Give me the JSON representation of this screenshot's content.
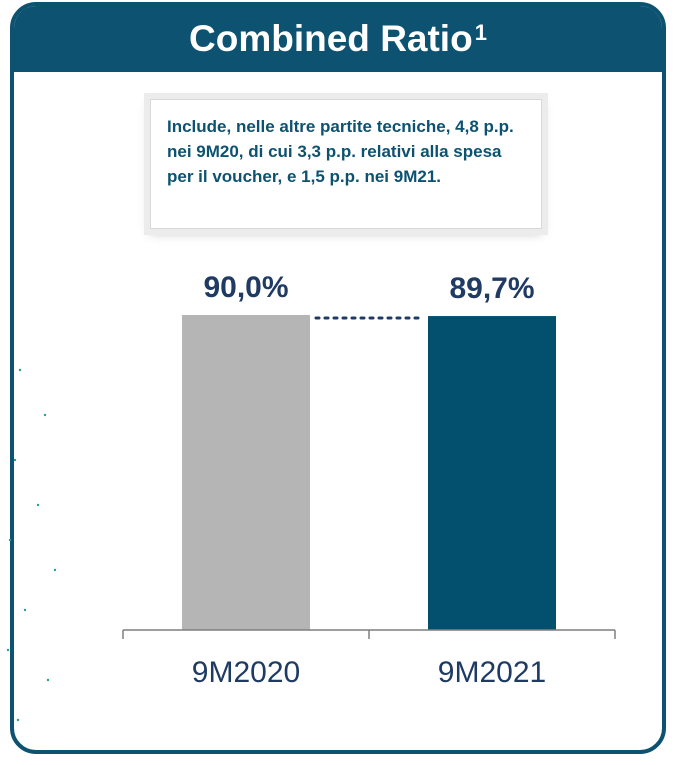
{
  "header": {
    "title": "Combined Ratio",
    "footnote_marker": "1"
  },
  "note": {
    "text": "Include, nelle altre partite tecniche, 4,8 p.p. nei 9M20, di cui 3,3 p.p. relativi alla spesa per il voucher, e 1,5 p.p. nei 9M21."
  },
  "colors": {
    "primary": "#0d5270",
    "bar_2020": "#b5b5b5",
    "bar_2021": "#034f6e",
    "text_dark": "#1f3b63"
  },
  "chart_data": {
    "type": "bar",
    "categories": [
      "9M2020",
      "9M2021"
    ],
    "values": [
      90.0,
      89.7
    ],
    "data_labels": [
      "90,0%",
      "89,7%"
    ],
    "title": "Combined Ratio",
    "xlabel": "",
    "ylabel": "",
    "ylim": [
      0,
      90.0
    ],
    "grid": false,
    "legend": "none"
  }
}
